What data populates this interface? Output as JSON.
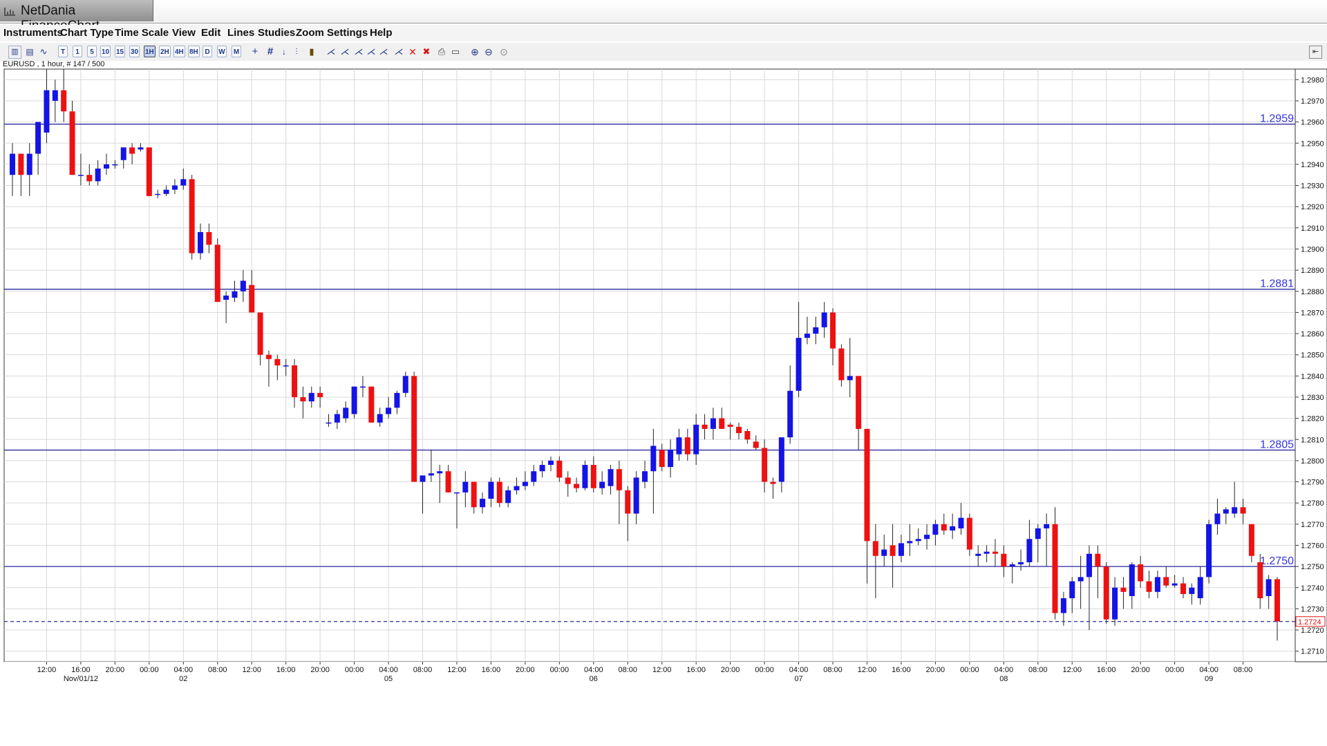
{
  "window": {
    "title": "NetDania FinanceChart"
  },
  "menu": [
    "Instruments",
    "Chart Type",
    "Time Scale",
    "View",
    "Edit",
    "Lines",
    "Studies",
    "Zoom",
    "Settings",
    "Help"
  ],
  "toolbar": {
    "intervals": [
      "T",
      "1",
      "5",
      "10",
      "15",
      "30",
      "1H",
      "2H",
      "4H",
      "8H",
      "D",
      "W",
      "M"
    ],
    "active_interval": "1H"
  },
  "symbol_line": "EURUSD , 1 hour, # 147 / 500",
  "colors": {
    "up": "#1414e6",
    "down": "#ee1111",
    "hline": "#2a2aa0",
    "label": "#3333dd",
    "grid": "#d8d8d8"
  },
  "chart_data": {
    "type": "candlestick",
    "symbol": "EURUSD",
    "interval": "1 hour",
    "ylim": [
      1.2705,
      1.2985
    ],
    "yticks": [
      "1.2710",
      "1.2720",
      "1.2730",
      "1.2740",
      "1.2750",
      "1.2760",
      "1.2770",
      "1.2780",
      "1.2790",
      "1.2800",
      "1.2810",
      "1.2820",
      "1.2830",
      "1.2840",
      "1.2850",
      "1.2860",
      "1.2870",
      "1.2880",
      "1.2890",
      "1.2900",
      "1.2910",
      "1.2920",
      "1.2930",
      "1.2940",
      "1.2950",
      "1.2960",
      "1.2970",
      "1.2980"
    ],
    "x_time_labels": [
      "12:00",
      "16:00",
      "20:00",
      "00:00",
      "04:00",
      "08:00",
      "12:00",
      "16:00",
      "20:00",
      "00:00",
      "04:00",
      "08:00",
      "12:00",
      "16:00",
      "20:00",
      "00:00",
      "04:00",
      "08:00",
      "12:00",
      "16:00",
      "20:00",
      "00:00",
      "04:00",
      "08:00",
      "12:00",
      "16:00",
      "20:00",
      "00:00",
      "04:00",
      "08:00",
      "12:00",
      "16:00",
      "20:00",
      "00:00",
      "04:00",
      "08:00"
    ],
    "x_date_labels": [
      "Nov/01/12",
      "02",
      "05",
      "06",
      "07",
      "08",
      "09"
    ],
    "horizontal_lines": [
      "1.2959",
      "1.2881",
      "1.2805",
      "1.2750"
    ],
    "current_price": "1.2724",
    "candles": [
      [
        1.2935,
        1.295,
        1.2925,
        1.2945
      ],
      [
        1.2945,
        1.2945,
        1.2925,
        1.2935
      ],
      [
        1.2935,
        1.295,
        1.2925,
        1.2945
      ],
      [
        1.2945,
        1.296,
        1.2935,
        1.296
      ],
      [
        1.2955,
        1.2985,
        1.295,
        1.2975
      ],
      [
        1.297,
        1.298,
        1.296,
        1.2975
      ],
      [
        1.2975,
        1.2985,
        1.296,
        1.2965
      ],
      [
        1.2965,
        1.297,
        1.2935,
        1.2935
      ],
      [
        1.2935,
        1.2945,
        1.293,
        1.2935
      ],
      [
        1.2935,
        1.294,
        1.293,
        1.2932
      ],
      [
        1.2932,
        1.2942,
        1.293,
        1.2938
      ],
      [
        1.2938,
        1.2945,
        1.2935,
        1.294
      ],
      [
        1.294,
        1.2942,
        1.2938,
        1.294
      ],
      [
        1.2942,
        1.2948,
        1.2938,
        1.2948
      ],
      [
        1.2948,
        1.295,
        1.294,
        1.2945
      ],
      [
        1.2947,
        1.295,
        1.2946,
        1.2948
      ],
      [
        1.2948,
        1.2948,
        1.2925,
        1.2925
      ],
      [
        1.2926,
        1.2928,
        1.2924,
        1.2926
      ],
      [
        1.2926,
        1.293,
        1.2925,
        1.2928
      ],
      [
        1.2928,
        1.2933,
        1.2926,
        1.293
      ],
      [
        1.293,
        1.2938,
        1.2928,
        1.2933
      ],
      [
        1.2933,
        1.2935,
        1.2895,
        1.2898
      ],
      [
        1.2898,
        1.2912,
        1.2895,
        1.2908
      ],
      [
        1.2908,
        1.2912,
        1.2898,
        1.2902
      ],
      [
        1.2902,
        1.2905,
        1.2875,
        1.2875
      ],
      [
        1.2876,
        1.288,
        1.2865,
        1.2878
      ],
      [
        1.2877,
        1.2885,
        1.2875,
        1.288
      ],
      [
        1.288,
        1.289,
        1.2875,
        1.2885
      ],
      [
        1.2883,
        1.289,
        1.287,
        1.287
      ],
      [
        1.287,
        1.287,
        1.2845,
        1.285
      ],
      [
        1.285,
        1.2852,
        1.2835,
        1.2848
      ],
      [
        1.2848,
        1.285,
        1.2838,
        1.2845
      ],
      [
        1.2845,
        1.2848,
        1.284,
        1.2845
      ],
      [
        1.2845,
        1.2848,
        1.2825,
        1.283
      ],
      [
        1.283,
        1.2835,
        1.282,
        1.2828
      ],
      [
        1.2828,
        1.2835,
        1.2825,
        1.2832
      ],
      [
        1.2832,
        1.2835,
        1.2825,
        1.283
      ],
      [
        1.2818,
        1.2822,
        1.2816,
        1.2818
      ],
      [
        1.2818,
        1.2824,
        1.2815,
        1.2822
      ],
      [
        1.282,
        1.2828,
        1.2818,
        1.2825
      ],
      [
        1.2822,
        1.2835,
        1.282,
        1.2835
      ],
      [
        1.2835,
        1.284,
        1.283,
        1.2835
      ],
      [
        1.2835,
        1.2835,
        1.2818,
        1.2818
      ],
      [
        1.2818,
        1.2825,
        1.2816,
        1.2822
      ],
      [
        1.2822,
        1.283,
        1.282,
        1.2825
      ],
      [
        1.2825,
        1.2833,
        1.2822,
        1.2832
      ],
      [
        1.2832,
        1.2842,
        1.283,
        1.284
      ],
      [
        1.284,
        1.2842,
        1.279,
        1.279
      ],
      [
        1.279,
        1.2792,
        1.2775,
        1.2793
      ],
      [
        1.2793,
        1.2805,
        1.279,
        1.2794
      ],
      [
        1.2794,
        1.2798,
        1.278,
        1.2795
      ],
      [
        1.2795,
        1.2798,
        1.2785,
        1.2785
      ],
      [
        1.2785,
        1.2785,
        1.2768,
        1.2785
      ],
      [
        1.2785,
        1.2795,
        1.2778,
        1.279
      ],
      [
        1.279,
        1.279,
        1.2775,
        1.2778
      ],
      [
        1.2778,
        1.2785,
        1.2775,
        1.2782
      ],
      [
        1.2782,
        1.2792,
        1.2778,
        1.279
      ],
      [
        1.279,
        1.2792,
        1.2778,
        1.278
      ],
      [
        1.278,
        1.2788,
        1.2778,
        1.2786
      ],
      [
        1.2786,
        1.2792,
        1.2784,
        1.2788
      ],
      [
        1.2788,
        1.2795,
        1.2786,
        1.279
      ],
      [
        1.279,
        1.2798,
        1.2788,
        1.2795
      ],
      [
        1.2795,
        1.28,
        1.2792,
        1.2798
      ],
      [
        1.2798,
        1.2802,
        1.2795,
        1.28
      ],
      [
        1.28,
        1.2802,
        1.279,
        1.2792
      ],
      [
        1.2792,
        1.2795,
        1.2783,
        1.2789
      ],
      [
        1.2789,
        1.2792,
        1.2785,
        1.2787
      ],
      [
        1.2787,
        1.28,
        1.2786,
        1.2798
      ],
      [
        1.2798,
        1.2802,
        1.2785,
        1.2787
      ],
      [
        1.2787,
        1.2795,
        1.2784,
        1.279
      ],
      [
        1.2788,
        1.2798,
        1.2784,
        1.2796
      ],
      [
        1.2796,
        1.28,
        1.277,
        1.2786
      ],
      [
        1.2786,
        1.2788,
        1.2762,
        1.2775
      ],
      [
        1.2775,
        1.2795,
        1.277,
        1.2792
      ],
      [
        1.279,
        1.28,
        1.2787,
        1.2795
      ],
      [
        1.2795,
        1.2815,
        1.2775,
        1.2807
      ],
      [
        1.2805,
        1.2808,
        1.2795,
        1.2797
      ],
      [
        1.2797,
        1.281,
        1.2792,
        1.2805
      ],
      [
        1.2803,
        1.2815,
        1.28,
        1.2811
      ],
      [
        1.2811,
        1.2815,
        1.28,
        1.2803
      ],
      [
        1.2803,
        1.2822,
        1.2798,
        1.2817
      ],
      [
        1.2817,
        1.2822,
        1.281,
        1.2815
      ],
      [
        1.2815,
        1.2825,
        1.281,
        1.282
      ],
      [
        1.282,
        1.2825,
        1.2815,
        1.2815
      ],
      [
        1.2817,
        1.2818,
        1.281,
        1.2816
      ],
      [
        1.2816,
        1.2818,
        1.281,
        1.2813
      ],
      [
        1.2814,
        1.2815,
        1.2808,
        1.281
      ],
      [
        1.2809,
        1.2812,
        1.2805,
        1.2806
      ],
      [
        1.2806,
        1.281,
        1.2785,
        1.279
      ],
      [
        1.279,
        1.2792,
        1.2782,
        1.2789
      ],
      [
        1.279,
        1.2811,
        1.2785,
        1.2811
      ],
      [
        1.2811,
        1.2845,
        1.2808,
        1.2833
      ],
      [
        1.2833,
        1.2875,
        1.283,
        1.2858
      ],
      [
        1.2858,
        1.2868,
        1.2855,
        1.286
      ],
      [
        1.286,
        1.2868,
        1.2855,
        1.2863
      ],
      [
        1.2863,
        1.2875,
        1.2858,
        1.287
      ],
      [
        1.287,
        1.2872,
        1.2845,
        1.2853
      ],
      [
        1.2853,
        1.2855,
        1.2835,
        1.2838
      ],
      [
        1.2838,
        1.2858,
        1.283,
        1.284
      ],
      [
        1.284,
        1.284,
        1.2805,
        1.2815
      ],
      [
        1.2815,
        1.2815,
        1.2742,
        1.2762
      ],
      [
        1.2762,
        1.277,
        1.2735,
        1.2755
      ],
      [
        1.2755,
        1.2765,
        1.275,
        1.2758
      ],
      [
        1.276,
        1.277,
        1.274,
        1.2755
      ],
      [
        1.2755,
        1.2765,
        1.2752,
        1.2761
      ],
      [
        1.2761,
        1.277,
        1.2755,
        1.2762
      ],
      [
        1.2762,
        1.2768,
        1.276,
        1.2763
      ],
      [
        1.2763,
        1.277,
        1.2758,
        1.2765
      ],
      [
        1.2765,
        1.2772,
        1.276,
        1.277
      ],
      [
        1.277,
        1.2775,
        1.2765,
        1.2767
      ],
      [
        1.2767,
        1.2775,
        1.2763,
        1.2769
      ],
      [
        1.2768,
        1.278,
        1.2765,
        1.2773
      ],
      [
        1.2773,
        1.2775,
        1.2755,
        1.2758
      ],
      [
        1.2755,
        1.276,
        1.275,
        1.2756
      ],
      [
        1.2756,
        1.276,
        1.2752,
        1.2757
      ],
      [
        1.2757,
        1.2763,
        1.275,
        1.2756
      ],
      [
        1.2756,
        1.276,
        1.2745,
        1.275
      ],
      [
        1.275,
        1.2752,
        1.2742,
        1.2751
      ],
      [
        1.2751,
        1.2758,
        1.2748,
        1.2752
      ],
      [
        1.2752,
        1.2772,
        1.275,
        1.2763
      ],
      [
        1.2763,
        1.277,
        1.2752,
        1.2768
      ],
      [
        1.2768,
        1.2775,
        1.275,
        1.277
      ],
      [
        1.277,
        1.2778,
        1.2725,
        1.2728
      ],
      [
        1.2728,
        1.2738,
        1.2722,
        1.2735
      ],
      [
        1.2735,
        1.2745,
        1.2728,
        1.2743
      ],
      [
        1.2743,
        1.2755,
        1.273,
        1.2745
      ],
      [
        1.2745,
        1.276,
        1.272,
        1.2756
      ],
      [
        1.2756,
        1.276,
        1.2735,
        1.275
      ],
      [
        1.275,
        1.2752,
        1.2723,
        1.2725
      ],
      [
        1.2725,
        1.2745,
        1.2722,
        1.274
      ],
      [
        1.274,
        1.2745,
        1.273,
        1.2738
      ],
      [
        1.2736,
        1.2752,
        1.273,
        1.2751
      ],
      [
        1.2751,
        1.2755,
        1.274,
        1.2743
      ],
      [
        1.2743,
        1.2748,
        1.2735,
        1.2738
      ],
      [
        1.2738,
        1.2748,
        1.2735,
        1.2745
      ],
      [
        1.2745,
        1.275,
        1.274,
        1.2741
      ],
      [
        1.2741,
        1.2746,
        1.274,
        1.2742
      ],
      [
        1.2742,
        1.2745,
        1.2735,
        1.2737
      ],
      [
        1.2737,
        1.2742,
        1.2732,
        1.274
      ],
      [
        1.2735,
        1.275,
        1.2732,
        1.2745
      ],
      [
        1.2745,
        1.2772,
        1.2742,
        1.277
      ],
      [
        1.277,
        1.2782,
        1.2765,
        1.2775
      ],
      [
        1.2775,
        1.2778,
        1.277,
        1.2777
      ],
      [
        1.2775,
        1.279,
        1.2773,
        1.2778
      ],
      [
        1.2778,
        1.2782,
        1.277,
        1.2775
      ],
      [
        1.277,
        1.277,
        1.2752,
        1.2755
      ],
      [
        1.2752,
        1.2756,
        1.273,
        1.2735
      ],
      [
        1.2736,
        1.2746,
        1.273,
        1.2744
      ],
      [
        1.2744,
        1.2745,
        1.2715,
        1.2724
      ]
    ]
  }
}
